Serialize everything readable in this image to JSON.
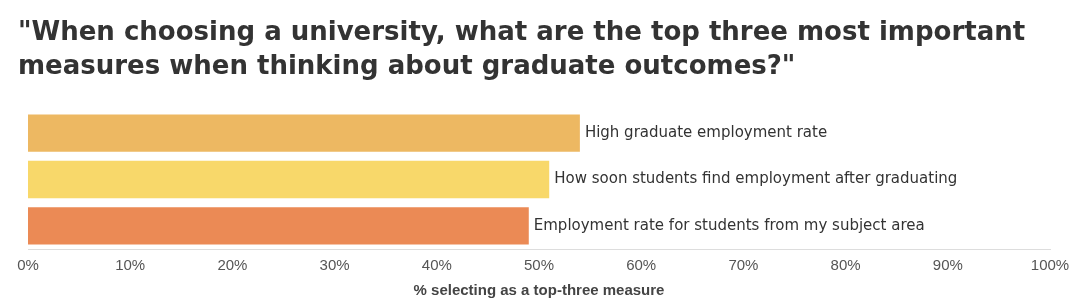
{
  "chart_data": {
    "type": "bar",
    "orientation": "horizontal",
    "title": "\"When choosing a university, what are the top three most important measures when thinking about graduate outcomes?\"",
    "xlabel": "% selecting as a top-three measure",
    "categories": [
      "High graduate employment rate",
      "How soon students find employment after graduating",
      "Employment rate for students from my subject area"
    ],
    "values": [
      54,
      51,
      49
    ],
    "colors": [
      "#edb862",
      "#f8d86a",
      "#eb8a55"
    ],
    "xlim": [
      0,
      100
    ],
    "xticks": [
      {
        "value": 0,
        "label": "0%"
      },
      {
        "value": 10,
        "label": "10%"
      },
      {
        "value": 20,
        "label": "20%"
      },
      {
        "value": 30,
        "label": "30%"
      },
      {
        "value": 40,
        "label": "40%"
      },
      {
        "value": 50,
        "label": "50%"
      },
      {
        "value": 60,
        "label": "60%"
      },
      {
        "value": 70,
        "label": "70%"
      },
      {
        "value": 80,
        "label": "80%"
      },
      {
        "value": 90,
        "label": "90%"
      },
      {
        "value": 100,
        "label": "100%"
      }
    ],
    "grid": false,
    "legend": false
  }
}
